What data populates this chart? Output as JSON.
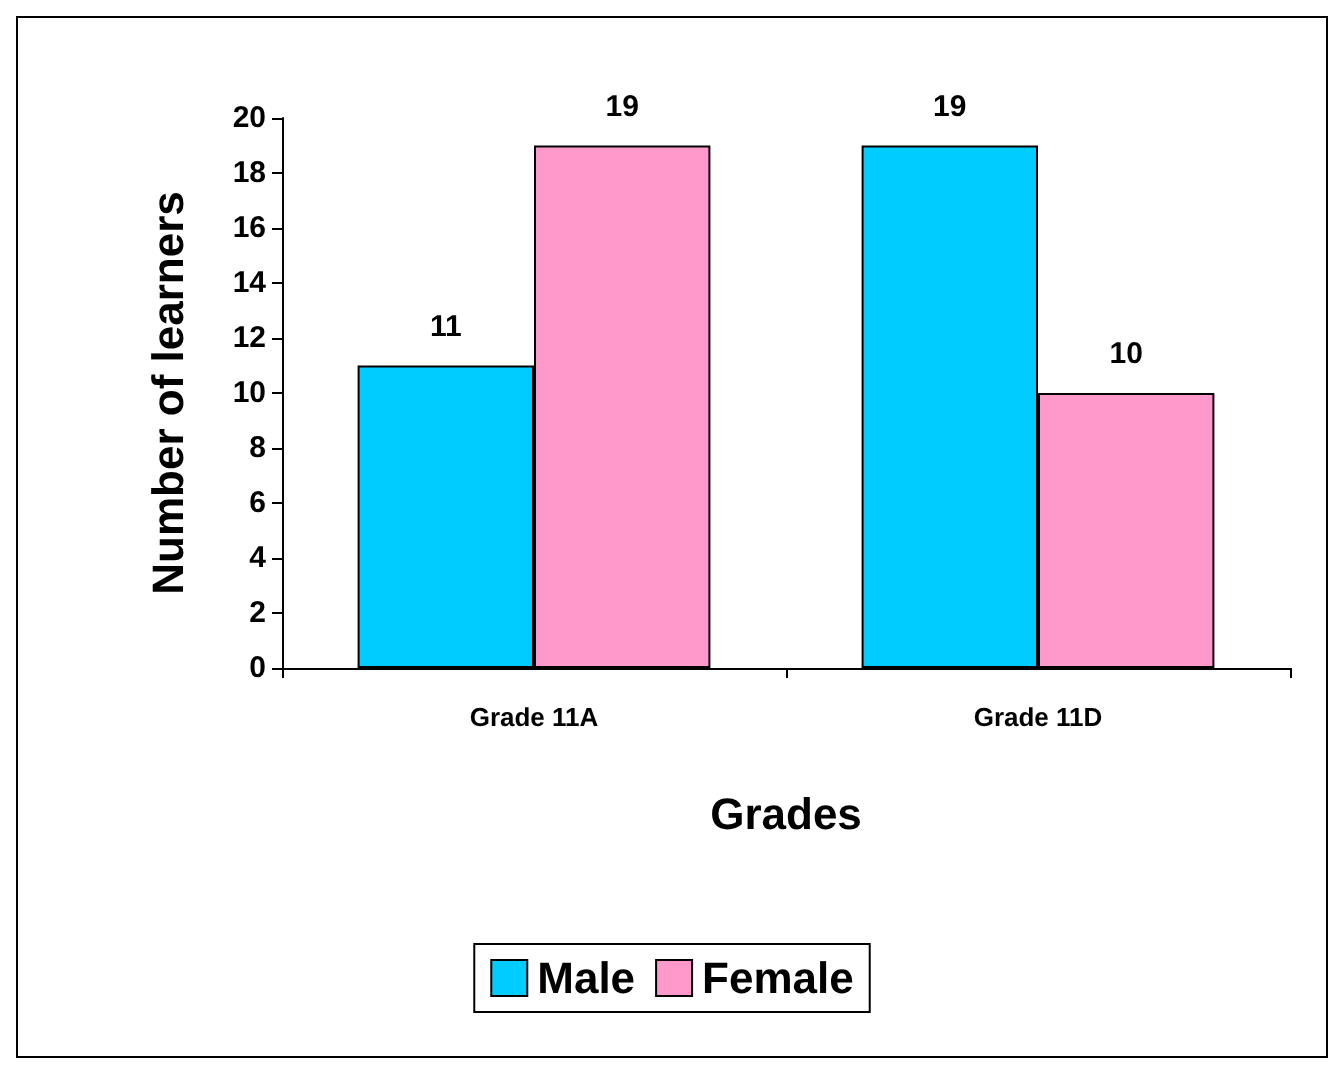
{
  "chart_data": {
    "type": "bar",
    "xlabel": "Grades",
    "ylabel": "Number of learners",
    "categories": [
      "Grade 11A",
      "Grade 11D"
    ],
    "series": [
      {
        "name": "Male",
        "color": "#00ccff",
        "values": [
          11,
          19
        ]
      },
      {
        "name": "Female",
        "color": "#ff99cc",
        "values": [
          19,
          10
        ]
      }
    ],
    "ylim": [
      0,
      20
    ],
    "yticks": [
      0,
      2,
      4,
      6,
      8,
      10,
      12,
      14,
      16,
      18,
      20
    ],
    "grid": false,
    "legend": "bottom",
    "data_labels": true
  }
}
